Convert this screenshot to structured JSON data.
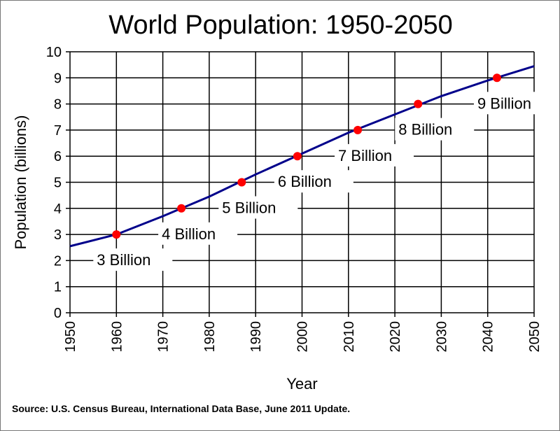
{
  "chart_data": {
    "type": "line",
    "title": "World Population: 1950-2050",
    "xlabel": "Year",
    "ylabel": "Population  (billions)",
    "xlim": [
      1950,
      2050
    ],
    "ylim": [
      0,
      10
    ],
    "x_ticks": [
      "1950",
      "1960",
      "1970",
      "1980",
      "1990",
      "2000",
      "2010",
      "2020",
      "2030",
      "2040",
      "2050"
    ],
    "y_ticks": [
      "0",
      "1",
      "2",
      "3",
      "4",
      "5",
      "6",
      "7",
      "8",
      "9",
      "10"
    ],
    "grid": true,
    "series": [
      {
        "x": [
          1950,
          1960,
          1970,
          1980,
          1990,
          2000,
          2010,
          2020,
          2030,
          2040,
          2050
        ],
        "y": [
          2.55,
          3.0,
          3.7,
          4.45,
          5.3,
          6.1,
          6.9,
          7.6,
          8.3,
          8.9,
          9.45
        ],
        "color": "#00008b"
      }
    ],
    "milestones": [
      {
        "x": 1960,
        "y": 3,
        "label": "3 Billion"
      },
      {
        "x": 1974,
        "y": 4,
        "label": "4 Billion"
      },
      {
        "x": 1987,
        "y": 5,
        "label": "5 Billion"
      },
      {
        "x": 1999,
        "y": 6,
        "label": "6 Billion"
      },
      {
        "x": 2012,
        "y": 7,
        "label": "7 Billion"
      },
      {
        "x": 2025,
        "y": 8,
        "label": "8 Billion"
      },
      {
        "x": 2042,
        "y": 9,
        "label": "9 Billion"
      }
    ],
    "milestone_color": "#ff0000"
  },
  "source": "Source: U.S. Census Bureau, International Data Base, June 2011 Update."
}
